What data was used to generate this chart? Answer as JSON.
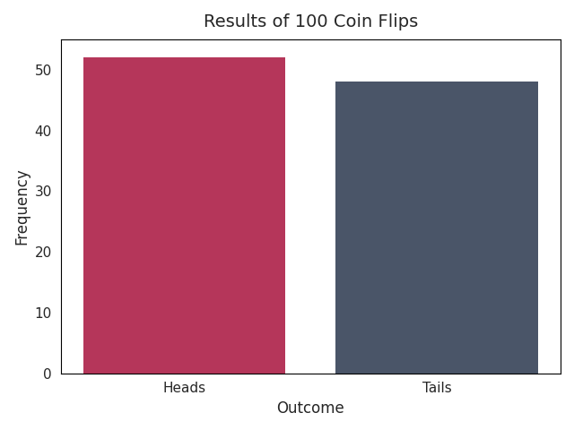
{
  "categories": [
    "Heads",
    "Tails"
  ],
  "values": [
    52,
    48
  ],
  "bar_colors": [
    "#b5365a",
    "#4a5568"
  ],
  "title": "Results of 100 Coin Flips",
  "xlabel": "Outcome",
  "ylabel": "Frequency",
  "ylim_max": 55,
  "title_fontsize": 14,
  "label_fontsize": 12,
  "tick_fontsize": 11,
  "bar_width": 0.8,
  "figsize": [
    6.4,
    4.8
  ],
  "dpi": 100
}
